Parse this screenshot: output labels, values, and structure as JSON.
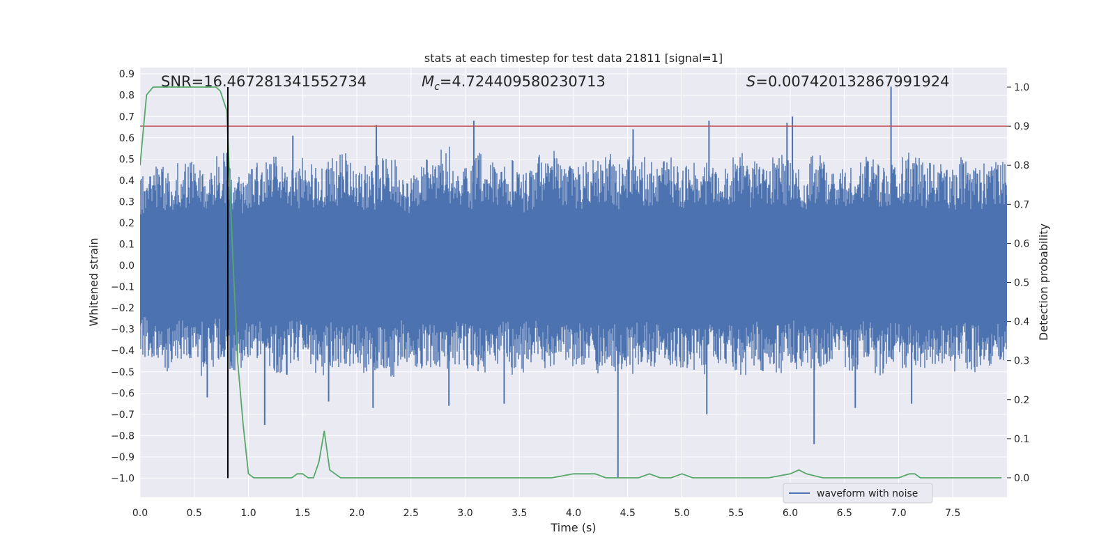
{
  "chart_data": {
    "type": "line",
    "title": "stats at each timestep for test data 21811 [signal=1]",
    "xlabel": "Time (s)",
    "ylabel": "Whitened strain",
    "y2label": "Detection probability",
    "xlim": [
      0.0,
      8.0
    ],
    "ylim": [
      -1.09,
      0.93
    ],
    "y2lim": [
      -0.05,
      1.05
    ],
    "xticks": [
      "0.0",
      "0.5",
      "1.0",
      "1.5",
      "2.0",
      "2.5",
      "3.0",
      "3.5",
      "4.0",
      "4.5",
      "5.0",
      "5.5",
      "6.0",
      "6.5",
      "7.0",
      "7.5"
    ],
    "yticks": [
      "0.9",
      "0.8",
      "0.7",
      "0.6",
      "0.5",
      "0.4",
      "0.3",
      "0.2",
      "0.1",
      "0.0",
      "−0.1",
      "−0.2",
      "−0.3",
      "−0.4",
      "−0.5",
      "−0.6",
      "−0.7",
      "−0.8",
      "−0.9",
      "−1.0"
    ],
    "y2ticks": [
      "1.0",
      "0.9",
      "0.8",
      "0.7",
      "0.6",
      "0.5",
      "0.4",
      "0.3",
      "0.2",
      "0.1",
      "0.0"
    ],
    "grid": true,
    "legend_position": "lower-right",
    "annotations": {
      "snr": "SNR=16.467281341552734",
      "mc": "=4.724409580230713",
      "s": "=0.007420132867991924"
    },
    "marker_time": 0.81,
    "threshold_probability": 0.9,
    "series": [
      {
        "name": "waveform with noise",
        "color": "#4c72b0",
        "axis": "left",
        "band_max": [
          0.42,
          0.48,
          0.47,
          0.49,
          0.51,
          0.45,
          0.53,
          0.46,
          0.44,
          0.5,
          0.52,
          0.48,
          0.47,
          0.55,
          0.46,
          0.51,
          0.53,
          0.49,
          0.47,
          0.52,
          0.5,
          0.44,
          0.48,
          0.51,
          0.56,
          0.49,
          0.47,
          0.53,
          0.5,
          0.48,
          0.51,
          0.45,
          0.52,
          0.54,
          0.49,
          0.47,
          0.5,
          0.53,
          0.48,
          0.52,
          0.51,
          0.49,
          0.55,
          0.47,
          0.5,
          0.52,
          0.48,
          0.51,
          0.54,
          0.49,
          0.47,
          0.52,
          0.5,
          0.48,
          0.53,
          0.49,
          0.51,
          0.47,
          0.52,
          0.5,
          0.48,
          0.51,
          0.53,
          0.49,
          0.5,
          0.47,
          0.52,
          0.48,
          0.51,
          0.5
        ],
        "band_min": [
          -0.44,
          -0.47,
          -0.5,
          -0.46,
          -0.52,
          -0.48,
          -0.45,
          -0.51,
          -0.49,
          -0.47,
          -0.5,
          -0.53,
          -0.46,
          -0.49,
          -0.52,
          -0.48,
          -0.5,
          -0.47,
          -0.51,
          -0.49,
          -0.53,
          -0.46,
          -0.5,
          -0.48,
          -0.52,
          -0.47,
          -0.49,
          -0.51,
          -0.5,
          -0.48,
          -0.52,
          -0.46,
          -0.5,
          -0.49,
          -0.51,
          -0.47,
          -0.53,
          -0.48,
          -0.5,
          -0.52,
          -0.47,
          -0.49,
          -0.51,
          -0.48,
          -0.5,
          -0.53,
          -0.47,
          -0.49,
          -0.52,
          -0.48,
          -0.5,
          -0.51,
          -0.47,
          -0.49,
          -0.52,
          -0.48,
          -0.5,
          -0.51,
          -0.47,
          -0.53,
          -0.49,
          -0.5,
          -0.48,
          -0.52,
          -0.47,
          -0.5,
          -0.49,
          -0.51,
          -0.48,
          -0.5
        ],
        "peaks": [
          {
            "t": 0.62,
            "v": -0.62
          },
          {
            "t": 0.8,
            "v": 0.4
          },
          {
            "t": 1.15,
            "v": -0.75
          },
          {
            "t": 1.41,
            "v": 0.61
          },
          {
            "t": 1.74,
            "v": -0.64
          },
          {
            "t": 2.15,
            "v": -0.67
          },
          {
            "t": 2.18,
            "v": 0.66
          },
          {
            "t": 2.85,
            "v": -0.66
          },
          {
            "t": 3.08,
            "v": 0.68
          },
          {
            "t": 3.36,
            "v": -0.65
          },
          {
            "t": 4.41,
            "v": -1.0
          },
          {
            "t": 4.55,
            "v": 0.64
          },
          {
            "t": 5.23,
            "v": -0.7
          },
          {
            "t": 5.25,
            "v": 0.68
          },
          {
            "t": 5.97,
            "v": 0.67
          },
          {
            "t": 6.02,
            "v": 0.7
          },
          {
            "t": 6.22,
            "v": -0.84
          },
          {
            "t": 6.6,
            "v": -0.67
          },
          {
            "t": 6.93,
            "v": 0.84
          },
          {
            "t": 7.12,
            "v": -0.65
          }
        ]
      },
      {
        "name": "",
        "color": "#55a868",
        "axis": "right",
        "x": [
          0.0,
          0.06,
          0.12,
          0.2,
          0.3,
          0.4,
          0.5,
          0.6,
          0.7,
          0.74,
          0.8,
          0.85,
          0.9,
          0.95,
          1.0,
          1.05,
          1.1,
          1.2,
          1.3,
          1.4,
          1.45,
          1.5,
          1.55,
          1.6,
          1.65,
          1.7,
          1.75,
          1.8,
          1.85,
          1.9,
          2.0,
          2.1,
          2.2,
          2.3,
          2.4,
          2.5,
          2.6,
          2.7,
          2.8,
          2.9,
          3.0,
          3.2,
          3.4,
          3.6,
          3.8,
          4.0,
          4.1,
          4.2,
          4.3,
          4.4,
          4.5,
          4.6,
          4.7,
          4.8,
          4.9,
          5.0,
          5.1,
          5.2,
          5.4,
          5.6,
          5.8,
          6.0,
          6.08,
          6.15,
          6.3,
          6.5,
          6.7,
          6.9,
          7.0,
          7.1,
          7.15,
          7.2,
          7.4,
          7.6,
          7.8,
          7.95
        ],
        "values": [
          0.8,
          0.98,
          1.0,
          1.0,
          1.0,
          1.0,
          1.0,
          1.0,
          1.0,
          0.99,
          0.94,
          0.6,
          0.3,
          0.14,
          0.01,
          0.0,
          0.0,
          0.0,
          0.0,
          0.0,
          0.01,
          0.01,
          0.0,
          0.0,
          0.04,
          0.12,
          0.02,
          0.01,
          0.0,
          0.0,
          0.0,
          0.0,
          0.0,
          0.0,
          0.0,
          0.0,
          0.0,
          0.0,
          0.0,
          0.0,
          0.0,
          0.0,
          0.0,
          0.0,
          0.0,
          0.01,
          0.01,
          0.01,
          0.0,
          0.0,
          0.0,
          0.0,
          0.01,
          0.0,
          0.0,
          0.01,
          0.0,
          0.0,
          0.0,
          0.0,
          0.0,
          0.01,
          0.02,
          0.01,
          0.0,
          0.0,
          0.0,
          0.0,
          0.0,
          0.01,
          0.01,
          0.0,
          0.0,
          0.0,
          0.0,
          0.0
        ]
      }
    ]
  }
}
